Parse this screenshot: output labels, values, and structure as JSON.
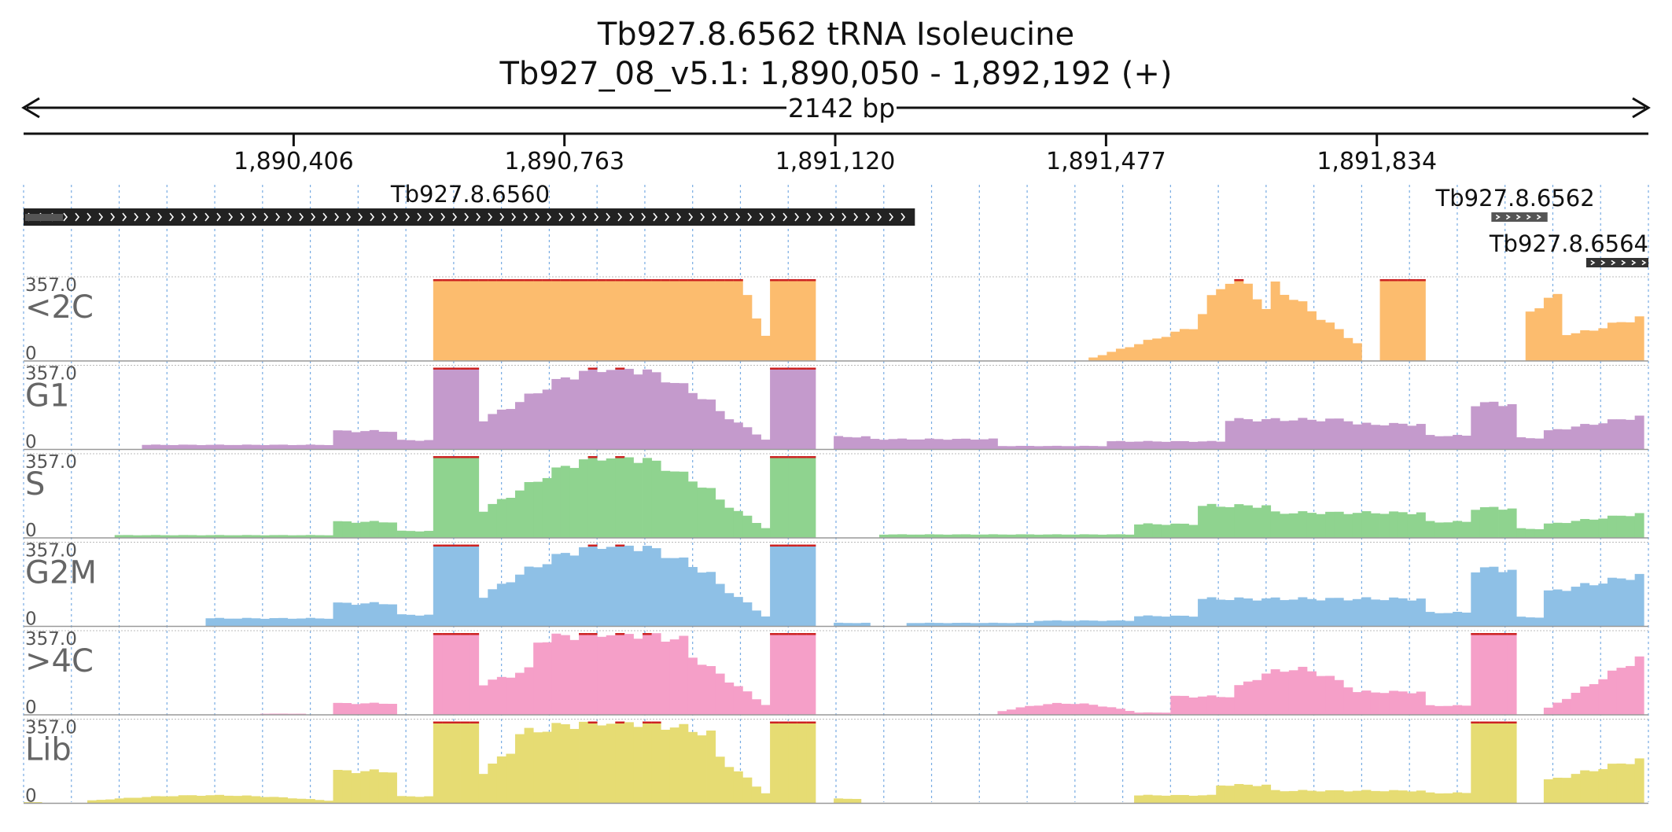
{
  "header": {
    "title": "Tb927.8.6562  tRNA Isoleucine",
    "coordinates": "Tb927_08_v5.1: 1,890,050 - 1,892,192 (+)"
  },
  "chart_data": {
    "type": "bar",
    "region": {
      "chromosome": "Tb927_08_v5.1",
      "start": 1890050,
      "end": 1892192,
      "strand": "+",
      "span_label": "2142 bp"
    },
    "xlim": [
      1890050,
      1892192
    ],
    "ylim": [
      0,
      357.0
    ],
    "x_ticks": [
      {
        "value": 1890406,
        "label": "1,890,406"
      },
      {
        "value": 1890763,
        "label": "1,890,763"
      },
      {
        "value": 1891120,
        "label": "1,891,120"
      },
      {
        "value": 1891477,
        "label": "1,891,477"
      },
      {
        "value": 1891834,
        "label": "1,891,834"
      }
    ],
    "genes": [
      {
        "name": "Tb927.8.6560",
        "start": 1890050,
        "end": 1891225,
        "strand": "+",
        "color": "#222222",
        "row": 0,
        "labeled": true
      },
      {
        "name": "Tb927.8.6562",
        "start": 1891985,
        "end": 1892059,
        "strand": "+",
        "color": "#555555",
        "row": 0,
        "labeled": true
      },
      {
        "name": "Tb927.8.6564",
        "start": 1892110,
        "end": 1892192,
        "strand": "+",
        "color": "#333333",
        "row": 1,
        "labeled": true
      }
    ],
    "bin_start": 1890050,
    "bin_size": 12,
    "clip_color": "#cc2222",
    "tracks": [
      {
        "name": "<2C",
        "color": "#fcbc6e",
        "max_label": "357.0",
        "min_label": "0",
        "segments": [
          {
            "start": 1890590,
            "end": 1891000,
            "shape": "flat",
            "v": 357
          },
          {
            "start": 1891000,
            "end": 1891030,
            "shape": "ramp",
            "v0": 300,
            "v1": 100
          },
          {
            "start": 1891040,
            "end": 1891100,
            "shape": "flat",
            "v": 357
          },
          {
            "start": 1891455,
            "end": 1891595,
            "shape": "ramp",
            "v0": 10,
            "v1": 150
          },
          {
            "start": 1891595,
            "end": 1891700,
            "shape": "hill",
            "base": 150,
            "peak": 357
          },
          {
            "start": 1891700,
            "end": 1891820,
            "shape": "ramp",
            "v0": 330,
            "v1": 50
          },
          {
            "start": 1891835,
            "end": 1891895,
            "shape": "flat",
            "v": 357
          },
          {
            "start": 1892025,
            "end": 1892080,
            "shape": "ramp",
            "v0": 200,
            "v1": 300
          },
          {
            "start": 1892080,
            "end": 1892100,
            "shape": "flat",
            "v": 120
          },
          {
            "start": 1892100,
            "end": 1892192,
            "shape": "ramp",
            "v0": 120,
            "v1": 200
          }
        ]
      },
      {
        "name": "G1",
        "color": "#c49acc",
        "max_label": "357.0",
        "min_label": "0",
        "segments": [
          {
            "start": 1890210,
            "end": 1890460,
            "shape": "flat",
            "v": 20
          },
          {
            "start": 1890460,
            "end": 1890540,
            "shape": "flat",
            "v": 80
          },
          {
            "start": 1890540,
            "end": 1890590,
            "shape": "flat",
            "v": 40
          },
          {
            "start": 1890590,
            "end": 1890650,
            "shape": "flat",
            "v": 357
          },
          {
            "start": 1890650,
            "end": 1890700,
            "shape": "ramp",
            "v0": 120,
            "v1": 200
          },
          {
            "start": 1890700,
            "end": 1890960,
            "shape": "hill",
            "base": 200,
            "peak": 357
          },
          {
            "start": 1890960,
            "end": 1891030,
            "shape": "ramp",
            "v0": 180,
            "v1": 40
          },
          {
            "start": 1891040,
            "end": 1891100,
            "shape": "flat",
            "v": 357
          },
          {
            "start": 1891120,
            "end": 1891170,
            "shape": "flat",
            "v": 55
          },
          {
            "start": 1891170,
            "end": 1891330,
            "shape": "flat",
            "v": 45
          },
          {
            "start": 1891330,
            "end": 1891480,
            "shape": "flat",
            "v": 15
          },
          {
            "start": 1891480,
            "end": 1891630,
            "shape": "flat",
            "v": 35
          },
          {
            "start": 1891630,
            "end": 1891800,
            "shape": "flat",
            "v": 130
          },
          {
            "start": 1891800,
            "end": 1891900,
            "shape": "flat",
            "v": 110
          },
          {
            "start": 1891900,
            "end": 1891960,
            "shape": "flat",
            "v": 60
          },
          {
            "start": 1891960,
            "end": 1892020,
            "shape": "flat",
            "v": 200
          },
          {
            "start": 1892020,
            "end": 1892060,
            "shape": "flat",
            "v": 50
          },
          {
            "start": 1892060,
            "end": 1892192,
            "shape": "ramp",
            "v0": 80,
            "v1": 150
          }
        ]
      },
      {
        "name": "S",
        "color": "#8fd38f",
        "max_label": "357.0",
        "min_label": "0",
        "segments": [
          {
            "start": 1890170,
            "end": 1890460,
            "shape": "flat",
            "v": 12
          },
          {
            "start": 1890460,
            "end": 1890540,
            "shape": "flat",
            "v": 70
          },
          {
            "start": 1890540,
            "end": 1890590,
            "shape": "flat",
            "v": 30
          },
          {
            "start": 1890590,
            "end": 1890650,
            "shape": "flat",
            "v": 357
          },
          {
            "start": 1890650,
            "end": 1890700,
            "shape": "ramp",
            "v0": 110,
            "v1": 200
          },
          {
            "start": 1890700,
            "end": 1890960,
            "shape": "hill",
            "base": 200,
            "peak": 357
          },
          {
            "start": 1890960,
            "end": 1891030,
            "shape": "ramp",
            "v0": 180,
            "v1": 40
          },
          {
            "start": 1891040,
            "end": 1891100,
            "shape": "flat",
            "v": 357
          },
          {
            "start": 1891180,
            "end": 1891520,
            "shape": "flat",
            "v": 15
          },
          {
            "start": 1891520,
            "end": 1891600,
            "shape": "flat",
            "v": 60
          },
          {
            "start": 1891600,
            "end": 1891700,
            "shape": "flat",
            "v": 140
          },
          {
            "start": 1891700,
            "end": 1891900,
            "shape": "flat",
            "v": 110
          },
          {
            "start": 1891900,
            "end": 1891960,
            "shape": "flat",
            "v": 70
          },
          {
            "start": 1891960,
            "end": 1892020,
            "shape": "flat",
            "v": 130
          },
          {
            "start": 1892020,
            "end": 1892060,
            "shape": "flat",
            "v": 40
          },
          {
            "start": 1892060,
            "end": 1892192,
            "shape": "ramp",
            "v0": 60,
            "v1": 110
          }
        ]
      },
      {
        "name": "G2M",
        "color": "#8ec0e6",
        "max_label": "357.0",
        "min_label": "0",
        "segments": [
          {
            "start": 1890290,
            "end": 1890460,
            "shape": "flat",
            "v": 35
          },
          {
            "start": 1890460,
            "end": 1890540,
            "shape": "flat",
            "v": 100
          },
          {
            "start": 1890540,
            "end": 1890590,
            "shape": "flat",
            "v": 50
          },
          {
            "start": 1890590,
            "end": 1890650,
            "shape": "flat",
            "v": 357
          },
          {
            "start": 1890650,
            "end": 1890700,
            "shape": "ramp",
            "v0": 120,
            "v1": 220
          },
          {
            "start": 1890700,
            "end": 1890960,
            "shape": "hill",
            "base": 220,
            "peak": 357
          },
          {
            "start": 1890960,
            "end": 1891030,
            "shape": "ramp",
            "v0": 200,
            "v1": 40
          },
          {
            "start": 1891040,
            "end": 1891100,
            "shape": "flat",
            "v": 357
          },
          {
            "start": 1891120,
            "end": 1891170,
            "shape": "flat",
            "v": 15
          },
          {
            "start": 1891210,
            "end": 1891380,
            "shape": "flat",
            "v": 15
          },
          {
            "start": 1891380,
            "end": 1891520,
            "shape": "flat",
            "v": 25
          },
          {
            "start": 1891520,
            "end": 1891600,
            "shape": "flat",
            "v": 45
          },
          {
            "start": 1891600,
            "end": 1891900,
            "shape": "flat",
            "v": 120
          },
          {
            "start": 1891900,
            "end": 1891960,
            "shape": "flat",
            "v": 60
          },
          {
            "start": 1891960,
            "end": 1892020,
            "shape": "flat",
            "v": 250
          },
          {
            "start": 1892020,
            "end": 1892060,
            "shape": "flat",
            "v": 40
          },
          {
            "start": 1892060,
            "end": 1892192,
            "shape": "ramp",
            "v0": 150,
            "v1": 230
          }
        ]
      },
      {
        "name": ">4C",
        "color": "#f59fc8",
        "max_label": "357.0",
        "min_label": "0",
        "segments": [
          {
            "start": 1890360,
            "end": 1890420,
            "shape": "flat",
            "v": 5
          },
          {
            "start": 1890460,
            "end": 1890540,
            "shape": "flat",
            "v": 50
          },
          {
            "start": 1890590,
            "end": 1890650,
            "shape": "flat",
            "v": 357
          },
          {
            "start": 1890650,
            "end": 1890720,
            "shape": "ramp",
            "v0": 130,
            "v1": 200
          },
          {
            "start": 1890720,
            "end": 1890930,
            "shape": "hill",
            "base": 320,
            "peak": 357
          },
          {
            "start": 1890930,
            "end": 1891030,
            "shape": "ramp",
            "v0": 260,
            "v1": 40
          },
          {
            "start": 1891040,
            "end": 1891100,
            "shape": "flat",
            "v": 357
          },
          {
            "start": 1891330,
            "end": 1891520,
            "shape": "hill",
            "base": 10,
            "peak": 50
          },
          {
            "start": 1891520,
            "end": 1891560,
            "shape": "flat",
            "v": 10
          },
          {
            "start": 1891560,
            "end": 1891650,
            "shape": "flat",
            "v": 80
          },
          {
            "start": 1891650,
            "end": 1891800,
            "shape": "hill",
            "base": 120,
            "peak": 200
          },
          {
            "start": 1891800,
            "end": 1891900,
            "shape": "flat",
            "v": 100
          },
          {
            "start": 1891900,
            "end": 1891960,
            "shape": "flat",
            "v": 40
          },
          {
            "start": 1891960,
            "end": 1892020,
            "shape": "flat",
            "v": 357
          },
          {
            "start": 1892060,
            "end": 1892192,
            "shape": "ramp",
            "v0": 30,
            "v1": 270
          }
        ]
      },
      {
        "name": "Lib",
        "color": "#e6dc73",
        "max_label": "357.0",
        "min_label": "0",
        "segments": [
          {
            "start": 1890050,
            "end": 1890070,
            "shape": "flat",
            "v": 5
          },
          {
            "start": 1890130,
            "end": 1890460,
            "shape": "hill",
            "base": 10,
            "peak": 35
          },
          {
            "start": 1890460,
            "end": 1890540,
            "shape": "flat",
            "v": 140
          },
          {
            "start": 1890540,
            "end": 1890590,
            "shape": "flat",
            "v": 30
          },
          {
            "start": 1890590,
            "end": 1890650,
            "shape": "flat",
            "v": 357
          },
          {
            "start": 1890650,
            "end": 1890700,
            "shape": "ramp",
            "v0": 120,
            "v1": 250
          },
          {
            "start": 1890700,
            "end": 1890960,
            "shape": "hill",
            "base": 300,
            "peak": 357
          },
          {
            "start": 1890960,
            "end": 1891030,
            "shape": "ramp",
            "v0": 220,
            "v1": 40
          },
          {
            "start": 1891040,
            "end": 1891100,
            "shape": "flat",
            "v": 357
          },
          {
            "start": 1891120,
            "end": 1891160,
            "shape": "flat",
            "v": 20
          },
          {
            "start": 1891520,
            "end": 1891620,
            "shape": "flat",
            "v": 35
          },
          {
            "start": 1891620,
            "end": 1891700,
            "shape": "flat",
            "v": 80
          },
          {
            "start": 1891700,
            "end": 1891900,
            "shape": "flat",
            "v": 55
          },
          {
            "start": 1891900,
            "end": 1891960,
            "shape": "flat",
            "v": 45
          },
          {
            "start": 1891960,
            "end": 1892020,
            "shape": "flat",
            "v": 357
          },
          {
            "start": 1892060,
            "end": 1892192,
            "shape": "ramp",
            "v0": 100,
            "v1": 200
          }
        ]
      }
    ],
    "grid": {
      "vertical_dotted": true,
      "color": "#4a90d9"
    }
  }
}
